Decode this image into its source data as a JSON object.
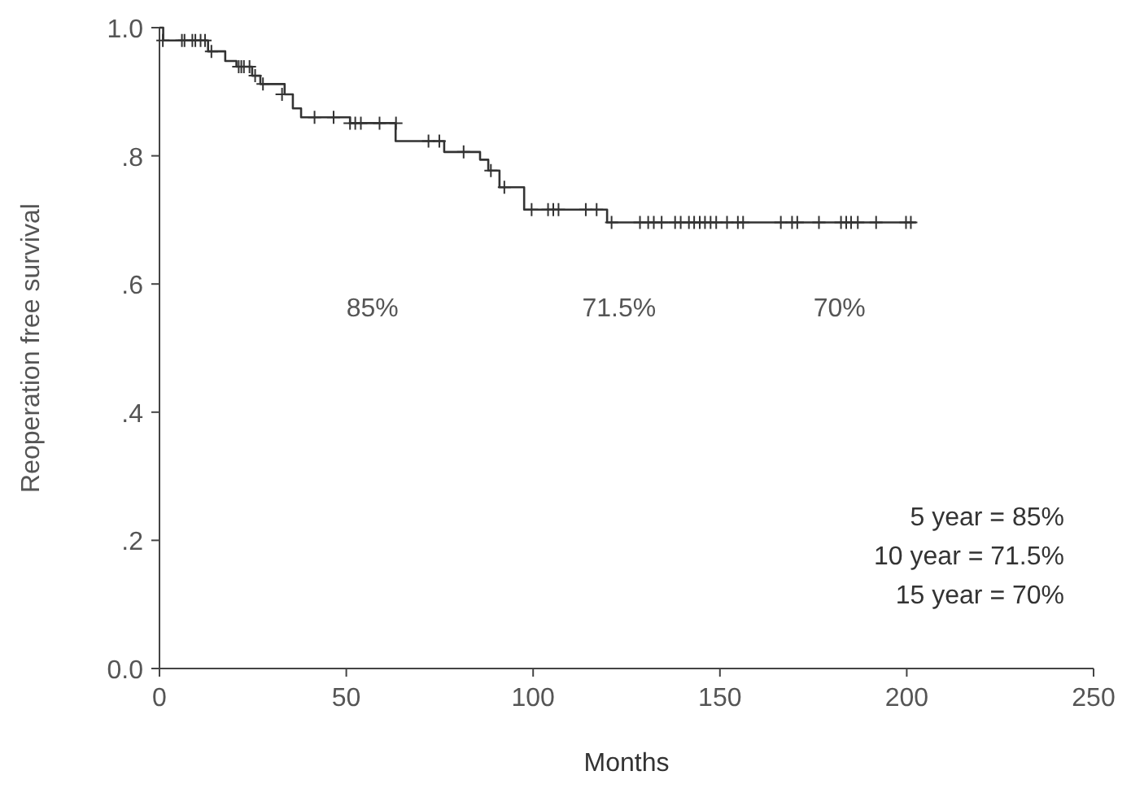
{
  "chart_data": {
    "type": "step",
    "xlabel": "Months",
    "ylabel": "Reoperation free survival",
    "xlim": [
      0,
      250
    ],
    "xticks": [
      0,
      50,
      100,
      150,
      200,
      250
    ],
    "ylim": [
      0,
      1
    ],
    "yticks": [
      {
        "value": 0,
        "label": "0.0"
      },
      {
        "value": 0.2,
        "label": ".2"
      },
      {
        "value": 0.4,
        "label": ".4"
      },
      {
        "value": 0.6,
        "label": ".6"
      },
      {
        "value": 0.8,
        "label": ".8"
      },
      {
        "value": 1,
        "label": "1.0"
      }
    ],
    "series": [
      {
        "color": "#333333",
        "x": [
          0,
          1,
          13,
          17.6,
          20.6,
          24.8,
          27,
          33.5,
          35.7,
          37.9,
          51,
          63.2,
          76.2,
          85.8,
          88,
          91,
          97.6,
          119.8,
          202.5
        ],
        "values": [
          1,
          0.98,
          0.963,
          0.948,
          0.939,
          0.925,
          0.912,
          0.896,
          0.874,
          0.86,
          0.851,
          0.823,
          0.806,
          0.794,
          0.777,
          0.751,
          0.716,
          0.696,
          0.696
        ]
      },
      {
        "type": "scatter",
        "color": "#333333",
        "marker": "cross",
        "x": [
          0.9,
          6,
          6.7,
          8.8,
          9.6,
          11,
          12.2,
          13.9,
          21.2,
          21.9,
          22.6,
          24.1,
          25.6,
          27.7,
          32.8,
          41.5,
          46.6,
          51,
          52.4,
          53.9,
          58.9,
          63.3,
          72,
          74.9,
          81.4,
          88.7,
          92.3,
          99.6,
          104,
          105.4,
          106.8,
          114.1,
          117,
          121,
          128.6,
          130.8,
          132.3,
          134.4,
          138,
          139.5,
          141.7,
          143.1,
          144.6,
          146,
          147.5,
          149,
          151.9,
          154.8,
          156.2,
          166.3,
          169.3,
          170.7,
          176.5,
          182.4,
          183.8,
          185.1,
          186.9,
          191.8,
          199.8,
          201.1
        ],
        "values": [
          0.98,
          0.98,
          0.98,
          0.98,
          0.98,
          0.98,
          0.98,
          0.963,
          0.939,
          0.939,
          0.939,
          0.939,
          0.925,
          0.912,
          0.896,
          0.86,
          0.86,
          0.851,
          0.851,
          0.851,
          0.851,
          0.851,
          0.823,
          0.823,
          0.806,
          0.777,
          0.751,
          0.716,
          0.716,
          0.716,
          0.716,
          0.716,
          0.716,
          0.696,
          0.696,
          0.696,
          0.696,
          0.696,
          0.696,
          0.696,
          0.696,
          0.696,
          0.696,
          0.696,
          0.696,
          0.696,
          0.696,
          0.696,
          0.696,
          0.696,
          0.696,
          0.696,
          0.696,
          0.696,
          0.696,
          0.696,
          0.696,
          0.696,
          0.696,
          0.696
        ]
      }
    ],
    "annotations": [
      "85%",
      "71.5%",
      "70%",
      "5 year = 85%",
      "10 year = 71.5%",
      "15 year = 70%"
    ]
  }
}
